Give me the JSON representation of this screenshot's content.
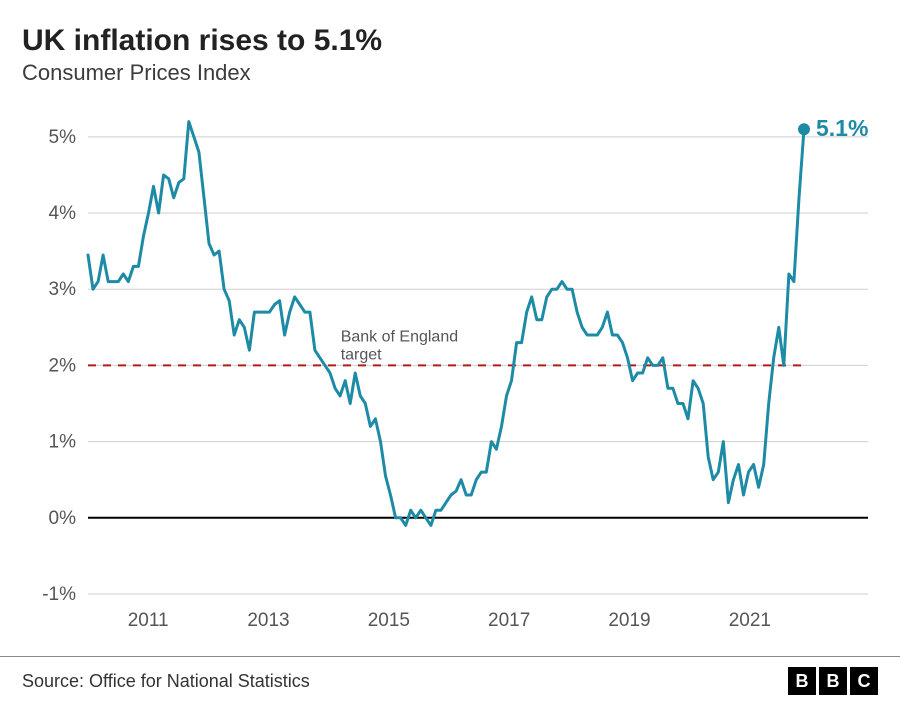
{
  "title": "UK inflation rises to 5.1%",
  "subtitle": "Consumer Prices Index",
  "source": "Source: Office for National Statistics",
  "logo_letters": [
    "B",
    "B",
    "C"
  ],
  "chart": {
    "type": "line",
    "background_color": "#ffffff",
    "line_color": "#1e8ba6",
    "line_width": 3,
    "zero_line_color": "#000000",
    "zero_line_width": 2,
    "grid_color": "#cfcfcf",
    "target_line": {
      "value": 2,
      "color": "#b11d1d",
      "dash": "8,7",
      "width": 2,
      "label": "Bank of England\ntarget"
    },
    "end_point": {
      "value": 5.1,
      "label": "5.1%",
      "color": "#1e8ba6",
      "radius": 6
    },
    "ylim": [
      -1,
      5.3
    ],
    "yticks": [
      -1,
      0,
      1,
      2,
      3,
      4,
      5
    ],
    "ytick_labels": [
      "-1%",
      "0%",
      "1%",
      "2%",
      "3%",
      "4%",
      "5%"
    ],
    "x_start_year": 2010.0,
    "x_end_year": 2021.9,
    "xticks": [
      2011,
      2013,
      2015,
      2017,
      2019,
      2021
    ],
    "xtick_labels": [
      "2011",
      "2013",
      "2015",
      "2017",
      "2019",
      "2021"
    ],
    "label_fontsize": 19,
    "label_color": "#555555",
    "series": [
      3.45,
      3.0,
      3.1,
      3.45,
      3.1,
      3.1,
      3.1,
      3.2,
      3.1,
      3.3,
      3.3,
      3.7,
      4.0,
      4.35,
      4.0,
      4.5,
      4.45,
      4.2,
      4.4,
      4.45,
      5.2,
      5.0,
      4.8,
      4.2,
      3.6,
      3.45,
      3.5,
      3.0,
      2.85,
      2.4,
      2.6,
      2.5,
      2.2,
      2.7,
      2.7,
      2.7,
      2.7,
      2.8,
      2.85,
      2.4,
      2.7,
      2.9,
      2.8,
      2.7,
      2.7,
      2.2,
      2.1,
      2.0,
      1.9,
      1.7,
      1.6,
      1.8,
      1.5,
      1.9,
      1.6,
      1.5,
      1.2,
      1.3,
      1.0,
      0.55,
      0.3,
      0.0,
      0.0,
      -0.1,
      0.1,
      0.0,
      0.1,
      0.0,
      -0.1,
      0.1,
      0.1,
      0.2,
      0.3,
      0.35,
      0.5,
      0.3,
      0.3,
      0.5,
      0.6,
      0.6,
      1.0,
      0.9,
      1.2,
      1.6,
      1.8,
      2.3,
      2.3,
      2.7,
      2.9,
      2.6,
      2.6,
      2.9,
      3.0,
      3.0,
      3.1,
      3.0,
      3.0,
      2.7,
      2.5,
      2.4,
      2.4,
      2.4,
      2.5,
      2.7,
      2.4,
      2.4,
      2.3,
      2.1,
      1.8,
      1.9,
      1.9,
      2.1,
      2.0,
      2.0,
      2.1,
      1.7,
      1.7,
      1.5,
      1.5,
      1.3,
      1.8,
      1.7,
      1.5,
      0.8,
      0.5,
      0.6,
      1.0,
      0.2,
      0.5,
      0.7,
      0.3,
      0.6,
      0.7,
      0.4,
      0.7,
      1.5,
      2.1,
      2.5,
      2.0,
      3.2,
      3.1,
      4.2,
      5.1
    ]
  }
}
